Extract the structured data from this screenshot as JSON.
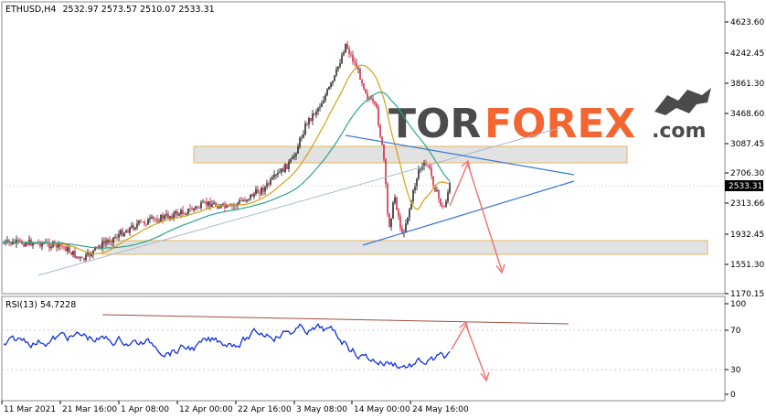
{
  "main_chart": {
    "symbol": "ETHUSD,H4",
    "ohlc": "2532.97 2573.57 2510.07 2533.31",
    "y_ticks": [
      "4623.60",
      "4242.45",
      "3861.30",
      "3468.60",
      "3087.45",
      "2706.30",
      "2313.66",
      "1932.45",
      "1551.30",
      "1170.15"
    ],
    "current_price": "2533.31",
    "colors": {
      "bull": "#0a0a0a",
      "bear": "#c8102e",
      "ma_fast": "#d4a017",
      "ma_slow": "#2aa58a",
      "trend": "#3a78d8",
      "forecast": "#f07070"
    }
  },
  "watermark": {
    "part1": "TOR",
    "part2": "FOREX",
    "part3": ".com",
    "colors": {
      "dark": "#2b2b2b",
      "accent": "#f2541b"
    }
  },
  "rsi_panel": {
    "label": "RSI(13) 54.7228",
    "y_ticks": [
      "100",
      "70",
      "30",
      "0"
    ],
    "line_color": "#1030e0"
  },
  "time_axis": {
    "labels": [
      "11 Mar 2021",
      "21 Mar 16:00",
      "1 Apr 08:00",
      "12 Apr 00:00",
      "22 Apr 16:00",
      "3 May 08:00",
      "14 May 00:00",
      "24 May 16:00"
    ]
  }
}
